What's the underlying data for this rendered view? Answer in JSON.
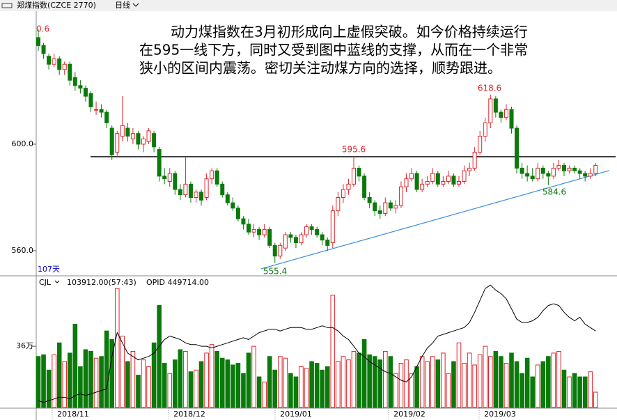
{
  "chart_data": {
    "type": "candlestick",
    "header": {
      "symbol": "郑煤指数(CZCE 2770)",
      "period": "日线"
    },
    "note_lines": [
      "动力煤指数在3月初形成向上虚假突破。如今价格持续运行",
      "在595一线下方，同时又受到图中蓝线的支撑，从而在一个非常",
      "狭小的区间内震荡。密切关注动煤方向的选择，顺势跟进。"
    ],
    "days_label": "107天",
    "annotations": [
      "0.6",
      "595.6",
      "618.6",
      "555.4",
      "584.6"
    ],
    "up_color": "#e0242a",
    "down_color": "#0a7a0a",
    "ylim": [
      550.85,
      649.4
    ],
    "yticks": [
      {
        "value": 600,
        "label": "600.0"
      },
      {
        "value": 560,
        "label": "560.0"
      }
    ],
    "hline": 595.3,
    "trendline": [
      553.2,
      590.1
    ],
    "candles": [
      [
        640,
        643,
        635,
        637
      ],
      [
        637,
        638,
        632,
        634
      ],
      [
        633,
        634,
        628,
        630
      ],
      [
        630,
        634,
        629,
        632
      ],
      [
        632,
        633,
        626,
        628
      ],
      [
        628,
        631,
        626,
        630
      ],
      [
        630,
        631,
        622,
        624
      ],
      [
        625,
        627,
        620,
        622
      ],
      [
        622,
        624,
        619,
        621
      ],
      [
        621,
        622,
        616,
        618
      ],
      [
        619,
        620,
        612,
        614
      ],
      [
        613,
        616,
        611,
        613
      ],
      [
        613,
        615,
        610,
        612
      ],
      [
        612,
        613,
        606,
        608
      ],
      [
        606,
        607,
        594,
        596
      ],
      [
        597,
        605,
        595,
        604
      ],
      [
        603,
        618,
        601,
        607
      ],
      [
        606,
        608,
        601,
        603
      ],
      [
        602,
        606,
        600,
        604
      ],
      [
        604,
        605,
        598,
        600
      ],
      [
        600,
        603,
        597,
        602
      ],
      [
        601,
        606,
        600,
        605
      ],
      [
        604,
        605,
        597,
        599
      ],
      [
        598,
        599,
        586,
        588
      ],
      [
        588,
        591,
        585,
        587
      ],
      [
        586,
        591,
        584,
        589
      ],
      [
        589,
        590,
        581,
        583
      ],
      [
        583,
        585,
        579,
        581
      ],
      [
        581,
        595,
        580,
        585
      ],
      [
        585,
        586,
        578,
        580
      ],
      [
        580,
        583,
        578,
        582
      ],
      [
        582,
        583,
        577,
        579
      ],
      [
        580,
        589,
        579,
        587
      ],
      [
        587,
        591,
        585,
        590
      ],
      [
        590,
        591,
        584,
        585
      ],
      [
        585,
        586,
        580,
        581
      ],
      [
        581,
        582,
        577,
        578
      ],
      [
        578,
        580,
        575,
        576
      ],
      [
        576,
        577,
        571,
        572
      ],
      [
        572,
        573,
        568,
        570
      ],
      [
        570,
        572,
        566,
        567
      ],
      [
        567,
        570,
        565,
        568
      ],
      [
        568,
        569,
        564,
        566
      ],
      [
        566,
        570,
        565,
        568
      ],
      [
        568,
        569,
        561,
        562
      ],
      [
        562,
        563,
        555.4,
        558
      ],
      [
        558,
        563,
        557,
        562
      ],
      [
        561,
        567,
        560,
        566
      ],
      [
        566,
        567,
        563,
        565
      ],
      [
        565,
        566,
        561,
        563
      ],
      [
        563,
        567,
        562,
        566
      ],
      [
        566,
        570,
        565,
        569
      ],
      [
        569,
        570,
        566,
        568
      ],
      [
        568,
        569,
        565,
        566
      ],
      [
        566,
        567,
        562,
        564
      ],
      [
        564,
        565,
        560,
        562
      ],
      [
        563,
        577,
        561,
        575
      ],
      [
        575,
        582,
        573,
        580
      ],
      [
        580,
        585,
        578,
        583
      ],
      [
        583,
        587,
        581,
        585
      ],
      [
        585,
        595.6,
        584,
        591
      ],
      [
        591,
        592,
        586,
        588
      ],
      [
        588,
        589,
        579,
        580
      ],
      [
        580,
        582,
        576,
        578
      ],
      [
        578,
        579,
        573,
        575
      ],
      [
        575,
        577,
        572,
        574
      ],
      [
        574,
        580,
        573,
        578
      ],
      [
        578,
        579,
        575,
        576
      ],
      [
        576,
        579,
        574,
        577
      ],
      [
        577,
        586,
        576,
        584
      ],
      [
        584,
        589,
        582,
        587
      ],
      [
        587,
        591,
        586,
        589
      ],
      [
        589,
        590,
        582,
        583
      ],
      [
        583,
        587,
        582,
        585
      ],
      [
        585,
        588,
        584,
        586
      ],
      [
        586,
        591,
        585,
        589
      ],
      [
        589,
        590,
        584,
        585
      ],
      [
        585,
        588,
        584,
        586
      ],
      [
        586,
        590,
        585,
        588
      ],
      [
        588,
        589,
        584,
        585
      ],
      [
        585,
        588,
        584,
        586
      ],
      [
        586,
        592,
        585,
        590
      ],
      [
        590,
        593,
        588,
        591
      ],
      [
        591,
        599,
        590,
        597
      ],
      [
        597,
        605,
        596,
        603
      ],
      [
        603,
        610,
        601,
        608
      ],
      [
        608,
        618.6,
        606,
        617
      ],
      [
        617,
        618,
        610,
        612
      ],
      [
        612,
        613,
        608,
        610
      ],
      [
        610,
        615,
        609,
        613
      ],
      [
        613,
        614,
        604,
        606
      ],
      [
        606,
        607,
        589,
        591
      ],
      [
        591,
        593,
        587,
        589
      ],
      [
        589,
        592,
        586,
        588
      ],
      [
        588,
        591,
        586,
        587
      ],
      [
        587,
        593,
        586,
        591
      ],
      [
        591,
        592,
        587,
        589
      ],
      [
        589,
        590,
        584.6,
        588
      ],
      [
        588,
        593,
        587,
        591
      ],
      [
        591,
        594,
        590,
        592
      ],
      [
        592,
        593,
        588,
        590
      ],
      [
        590,
        592,
        589,
        591
      ],
      [
        591,
        592,
        589,
        590
      ],
      [
        590,
        591,
        587,
        589
      ],
      [
        589,
        590,
        586,
        588
      ],
      [
        588,
        591,
        587,
        589
      ],
      [
        589,
        593,
        588,
        592
      ]
    ],
    "x_labels": [
      "2018/11",
      "2018/12",
      "2019/01",
      "2019/02",
      "2019/03"
    ],
    "volume_panel": {
      "indicator": "CJL",
      "volume_text": "103912.00(57:43)",
      "oi_text": "OPID 449714.00",
      "ylim": [
        0,
        75.8
      ],
      "yticks": [
        {
          "value": 36,
          "label": "36万"
        }
      ],
      "volume": [
        30,
        31,
        22,
        31,
        38,
        27,
        32,
        49,
        24,
        34,
        33,
        29,
        30,
        45,
        40,
        70,
        42,
        27,
        33,
        19,
        28,
        24,
        38,
        60,
        26,
        20,
        28,
        34,
        33,
        21,
        22,
        27,
        32,
        37,
        33,
        29,
        28,
        25,
        26,
        20,
        32,
        36,
        18,
        15,
        30,
        22,
        30,
        29,
        20,
        18,
        24,
        23,
        27,
        26,
        22,
        24,
        66,
        27,
        30,
        28,
        33,
        32,
        40,
        31,
        30,
        28,
        33,
        30,
        20,
        26,
        28,
        20,
        24,
        30,
        27,
        30,
        28,
        32,
        20,
        27,
        38,
        26,
        32,
        25,
        31,
        36,
        30,
        33,
        30,
        26,
        32,
        27,
        20,
        29,
        18,
        25,
        27,
        30,
        32,
        33,
        22,
        18,
        20,
        18,
        18,
        21,
        9
      ],
      "open_interest": [
        4,
        3,
        4,
        5,
        6,
        6,
        5,
        7,
        8,
        7,
        8,
        9,
        10,
        11,
        30,
        44,
        38,
        32,
        30,
        28,
        29,
        30,
        32,
        36,
        40,
        42,
        41,
        40,
        38,
        37,
        37,
        36,
        36,
        35,
        36,
        37,
        38,
        39,
        40,
        41,
        40,
        42,
        44,
        45,
        46,
        46,
        45,
        46,
        47,
        47,
        47,
        46,
        46,
        47,
        48,
        47,
        47,
        45,
        42,
        40,
        36,
        32,
        30,
        27,
        25,
        23,
        21,
        20,
        18,
        16,
        15,
        18,
        24,
        30,
        35,
        38,
        42,
        43,
        44,
        45,
        46,
        47,
        50,
        56,
        63,
        70,
        72,
        69,
        67,
        64,
        58,
        52,
        50,
        50,
        51,
        53,
        57,
        60,
        61,
        60,
        56,
        53,
        51,
        53,
        49,
        47,
        45
      ]
    }
  }
}
